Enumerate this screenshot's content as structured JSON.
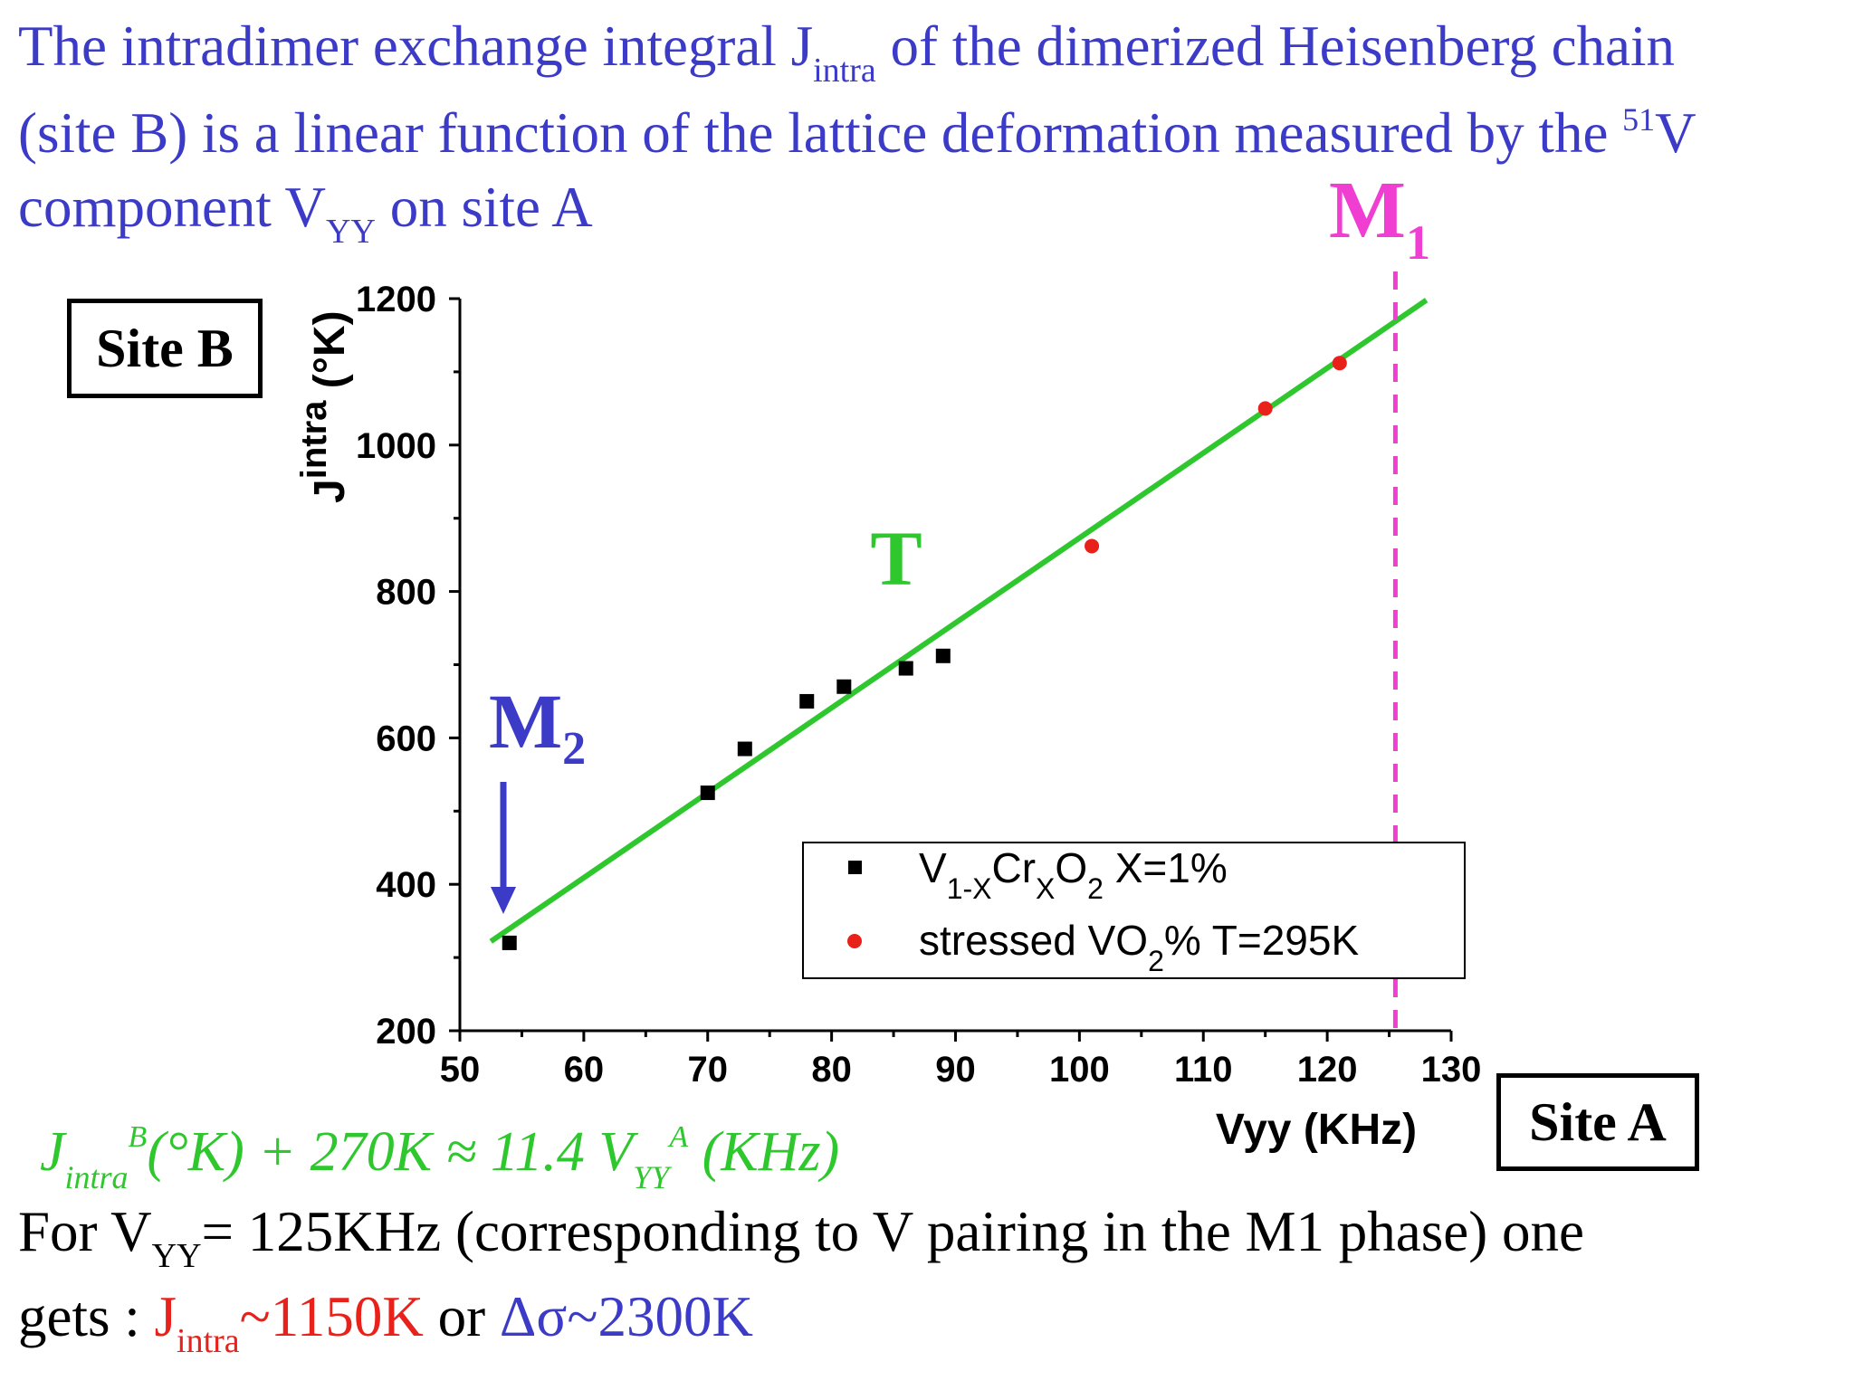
{
  "headline": {
    "line1_a": "The intradimer exchange integral J",
    "line1_sub": "intra",
    "line1_b": " of the dimerized Heisenberg chain",
    "line2_a": " (site B) is a linear function of the lattice deformation measured by the ",
    "line2_sup": "51",
    "line2_b": "V",
    "line3_a": "component V",
    "line3_sub": "YY",
    "line3_b": " on site A"
  },
  "boxes": {
    "site_b": "Site B",
    "site_a": "Site A"
  },
  "chart_data": {
    "type": "scatter",
    "title": "",
    "xlabel": "Vyy (KHz)",
    "ylabel": "J",
    "ylabel_sup": "intra",
    "ylabel_unit": " (°K)",
    "xlim": [
      50,
      130
    ],
    "ylim": [
      200,
      1200
    ],
    "xticks": [
      50,
      60,
      70,
      80,
      90,
      100,
      110,
      120,
      130
    ],
    "yticks": [
      200,
      400,
      600,
      800,
      1000,
      1200
    ],
    "grid": false,
    "legend_position": "bottom-right",
    "series": [
      {
        "name": "V1-XCrXO2 X=1%",
        "legend_parts": {
          "a": "V",
          "s1": "1-X",
          "b": "Cr",
          "s2": "X",
          "c": "O",
          "s3": "2",
          "d": " X=1%"
        },
        "marker": "square",
        "color": "#000000",
        "x": [
          54,
          70,
          73,
          78,
          81,
          86,
          89
        ],
        "y": [
          320,
          525,
          585,
          650,
          670,
          695,
          712
        ]
      },
      {
        "name": "stressed VO2% T=295K",
        "legend_parts": {
          "a": "stressed VO",
          "s1": "2",
          "b": "% T=295K"
        },
        "marker": "circle",
        "color": "#e8211b",
        "x": [
          101,
          115,
          121
        ],
        "y": [
          862,
          1050,
          1112
        ]
      }
    ],
    "fit_line": {
      "color": "#2ec72e",
      "x": [
        52.5,
        128
      ],
      "y": [
        322,
        1198
      ]
    },
    "vline": {
      "x": 125.5,
      "color": "#f03ed2",
      "label": "M",
      "label_sub": "1"
    },
    "annotations": [
      {
        "id": "T",
        "text": "T",
        "color": "#2ec72e"
      },
      {
        "id": "M2",
        "text": "M",
        "sub": "2",
        "color": "#3b3bc8",
        "arrow_target": [
          54,
          320
        ]
      }
    ]
  },
  "formula": {
    "j": "J",
    "sub1": "intra",
    "sup1": "B",
    "mid": "(°K) + 270K ≈ 11.4 V",
    "sub2": "YY",
    "sup2": "A",
    "end": " (KHz)"
  },
  "conclusion": {
    "line1_a": "For V",
    "line1_sub": "YY",
    "line1_b": "= 125KHz (corresponding to V pairing in the M1 phase) one",
    "line2_a": "gets : ",
    "line2_j": "J",
    "line2_sub": "intra",
    "line2_val": "~1150K",
    "line2_or": " or ",
    "line2_delta": "Δσ~2300K"
  }
}
